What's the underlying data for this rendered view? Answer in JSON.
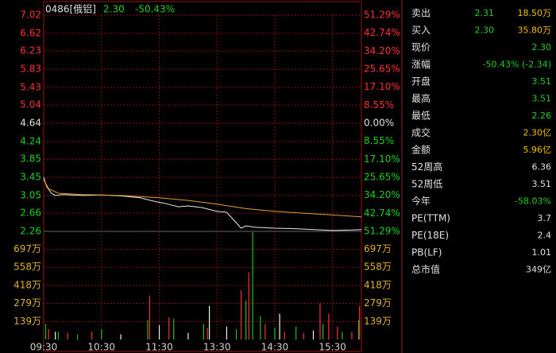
{
  "header": {
    "code": "0486[俄铝]",
    "price": "2.30",
    "change": "-50.43%"
  },
  "chart_data": [
    {
      "type": "line",
      "xlim": [
        0,
        330
      ],
      "xticks": [
        {
          "value": 0,
          "label": "09:30"
        },
        {
          "value": 60,
          "label": "10:30"
        },
        {
          "value": 120,
          "label": "11:30"
        },
        {
          "value": 180,
          "label": "13:30"
        },
        {
          "value": 240,
          "label": "14:30"
        },
        {
          "value": 300,
          "label": "15:30"
        }
      ],
      "ylim": [
        2.26,
        7.02
      ],
      "yticks": [
        7.02,
        6.62,
        6.23,
        5.83,
        5.43,
        5.04,
        4.64,
        4.24,
        3.85,
        3.45,
        3.05,
        2.66,
        2.26
      ],
      "y2lim": [
        -51.29,
        51.29
      ],
      "y2ticks": [
        {
          "value": 51.29,
          "label": "51.29%"
        },
        {
          "value": 42.74,
          "label": "42.74%"
        },
        {
          "value": 34.2,
          "label": "34.20%"
        },
        {
          "value": 25.65,
          "label": "25.65%"
        },
        {
          "value": 17.1,
          "label": "17.10%"
        },
        {
          "value": 8.55,
          "label": "8.55%"
        },
        {
          "value": 0,
          "label": "0.00%"
        },
        {
          "value": -8.55,
          "label": "8.55%"
        },
        {
          "value": -17.1,
          "label": "17.10%"
        },
        {
          "value": -25.65,
          "label": "25.65%"
        },
        {
          "value": -34.2,
          "label": "34.20%"
        },
        {
          "value": -42.74,
          "label": "42.74%"
        },
        {
          "value": -51.29,
          "label": "51.29%"
        }
      ],
      "series": [
        {
          "color": "#e8e8e8",
          "x": [
            0,
            3,
            8,
            12,
            20,
            40,
            60,
            80,
            100,
            115,
            125,
            140,
            150,
            165,
            180,
            190,
            200,
            205,
            210,
            220,
            240,
            260,
            280,
            300,
            320,
            330
          ],
          "values": [
            3.45,
            3.25,
            3.1,
            3.05,
            3.07,
            3.05,
            3.06,
            3.04,
            3.0,
            2.92,
            2.88,
            2.8,
            2.82,
            2.78,
            2.7,
            2.68,
            2.45,
            2.33,
            2.38,
            2.35,
            2.33,
            2.32,
            2.3,
            2.28,
            2.29,
            2.3
          ]
        },
        {
          "color": "#e0a030",
          "x": [
            0,
            5,
            15,
            40,
            80,
            120,
            150,
            180,
            210,
            240,
            270,
            300,
            330
          ],
          "values": [
            3.4,
            3.2,
            3.1,
            3.07,
            3.05,
            3.0,
            2.94,
            2.86,
            2.76,
            2.7,
            2.66,
            2.62,
            2.58
          ]
        }
      ]
    },
    {
      "type": "bar",
      "ylim": [
        0,
        836
      ],
      "yticks": [
        {
          "value": 697,
          "label": "697万"
        },
        {
          "value": 558,
          "label": "558万"
        },
        {
          "value": 418,
          "label": "418万"
        },
        {
          "value": 279,
          "label": "279万"
        },
        {
          "value": 139,
          "label": "139万"
        }
      ],
      "series": [
        {
          "color": "#20c020",
          "x": [
            2,
            15,
            35,
            60,
            108,
            135,
            166,
            200,
            210,
            217,
            225,
            240,
            262,
            290,
            310,
            327
          ],
          "values": [
            120,
            60,
            40,
            80,
            150,
            160,
            120,
            80,
            300,
            830,
            180,
            90,
            100,
            120,
            60,
            150
          ]
        },
        {
          "color": "#ff3030",
          "x": [
            5,
            25,
            50,
            110,
            130,
            170,
            205,
            213,
            230,
            250,
            270,
            287,
            296,
            305,
            320,
            328
          ],
          "values": [
            80,
            50,
            60,
            340,
            170,
            90,
            380,
            520,
            120,
            60,
            50,
            280,
            200,
            100,
            60,
            260
          ]
        },
        {
          "color": "#f0f0f0",
          "x": [
            12,
            80,
            120,
            150,
            172,
            190,
            245,
            280
          ],
          "values": [
            60,
            40,
            110,
            50,
            260,
            100,
            200,
            70
          ]
        }
      ]
    }
  ],
  "quote": [
    {
      "label": "卖出",
      "values": [
        "2.31",
        "18.50万"
      ],
      "colors": [
        "#20d020",
        "#f0c000"
      ]
    },
    {
      "label": "买入",
      "values": [
        "2.30",
        "35.80万"
      ],
      "colors": [
        "#20d020",
        "#f0c000"
      ]
    },
    {
      "label": "现价",
      "values": [
        "2.30"
      ],
      "colors": [
        "#20d020"
      ]
    },
    {
      "label": "涨幅",
      "values": [
        "-50.43% (-2.34)"
      ],
      "colors": [
        "#20d020"
      ]
    },
    {
      "label": "开盘",
      "values": [
        "3.51"
      ],
      "colors": [
        "#20d020"
      ]
    },
    {
      "label": "最高",
      "values": [
        "3.51"
      ],
      "colors": [
        "#20d020"
      ]
    },
    {
      "label": "最低",
      "values": [
        "2.26"
      ],
      "colors": [
        "#20d020"
      ]
    },
    {
      "label": "成交",
      "values": [
        "2.30亿"
      ],
      "colors": [
        "#f0c000"
      ]
    },
    {
      "label": "金额",
      "values": [
        "5.96亿"
      ],
      "colors": [
        "#f0c000"
      ]
    },
    {
      "label": "52周高",
      "values": [
        "6.36"
      ],
      "colors": [
        "#e0e0e0"
      ]
    },
    {
      "label": "52周低",
      "values": [
        "3.51"
      ],
      "colors": [
        "#e0e0e0"
      ]
    },
    {
      "label": "今年",
      "values": [
        "-58.03%"
      ],
      "colors": [
        "#20d020"
      ]
    },
    {
      "label": "PE(TTM)",
      "values": [
        "3.7"
      ],
      "colors": [
        "#e0e0e0"
      ]
    },
    {
      "label": "PE(18E)",
      "values": [
        "2.4"
      ],
      "colors": [
        "#e0e0e0"
      ]
    },
    {
      "label": "PB(LF)",
      "values": [
        "1.01"
      ],
      "colors": [
        "#e0e0e0"
      ]
    },
    {
      "label": "总市值",
      "values": [
        "349亿"
      ],
      "colors": [
        "#e0e0e0"
      ]
    }
  ]
}
